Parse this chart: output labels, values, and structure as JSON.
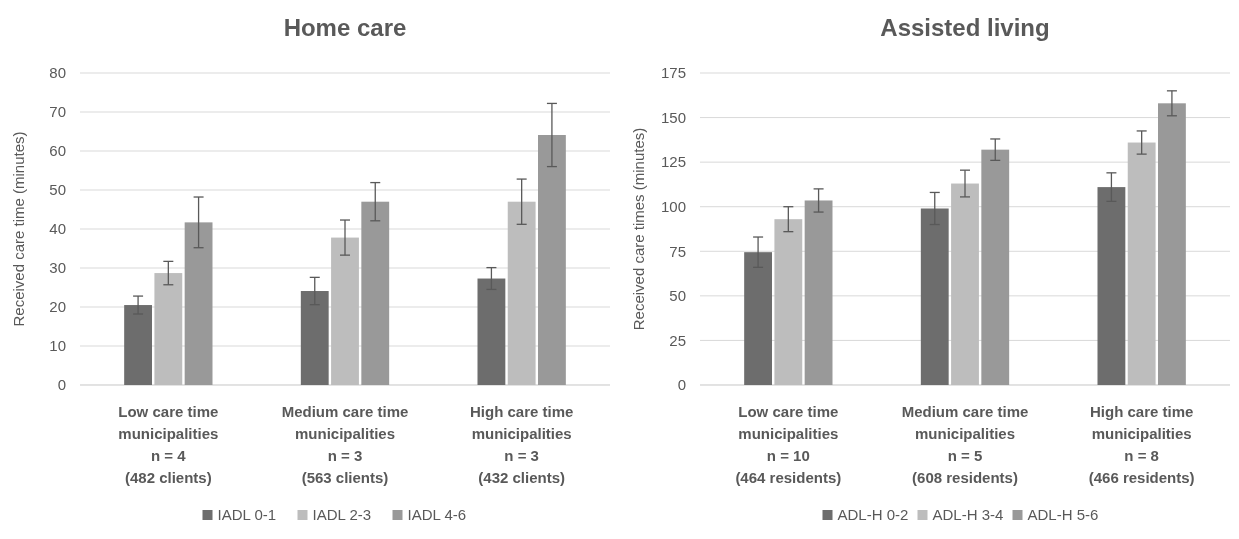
{
  "chart_data": [
    {
      "type": "bar",
      "title": "Home care",
      "ylabel": "Received care time (minutes)",
      "categories": [
        "Low care time\nmunicipalities\nn = 4\n(482 clients)",
        "Medium care time\nmunicipalities\nn = 3\n(563 clients)",
        "High care time\nmunicipalities\nn = 3\n(432 clients)"
      ],
      "series": [
        {
          "name": "IADL 0-1",
          "color": "#6d6d6d",
          "values": [
            20.5,
            24.1,
            27.3
          ],
          "errors": [
            2.3,
            3.5,
            2.8
          ]
        },
        {
          "name": "IADL 2-3",
          "color": "#bdbdbd",
          "values": [
            28.7,
            37.8,
            47
          ],
          "errors": [
            3,
            4.5,
            5.8
          ]
        },
        {
          "name": "IADL 4-6",
          "color": "#999999",
          "values": [
            41.7,
            47,
            64.1
          ],
          "errors": [
            6.5,
            4.9,
            8.1
          ]
        }
      ],
      "ylim": [
        0,
        80
      ],
      "yticks": [
        0,
        10,
        20,
        30,
        40,
        50,
        60,
        70,
        80
      ],
      "grid": "y",
      "legend": "bottom"
    },
    {
      "type": "bar",
      "title": "Assisted living",
      "ylabel": "Received care times (minutes)",
      "categories": [
        "Low care time\nmunicipalities\nn = 10\n(464 residents)",
        "Medium care time\nmunicipalities\nn = 5\n(608 residents)",
        "High care time\nmunicipalities\nn = 8\n(466 residents)"
      ],
      "series": [
        {
          "name": "ADL-H 0-2",
          "color": "#6d6d6d",
          "values": [
            74.5,
            99,
            111
          ],
          "errors": [
            8.5,
            9,
            8
          ]
        },
        {
          "name": "ADL-H 3-4",
          "color": "#bdbdbd",
          "values": [
            93,
            113,
            136
          ],
          "errors": [
            7,
            7.5,
            6.5
          ]
        },
        {
          "name": "ADL-H 5-6",
          "color": "#999999",
          "values": [
            103.5,
            132,
            158
          ],
          "errors": [
            6.5,
            6,
            7
          ]
        }
      ],
      "ylim": [
        0,
        175
      ],
      "yticks": [
        0,
        25,
        50,
        75,
        100,
        125,
        150,
        175
      ],
      "grid": "y",
      "legend": "bottom"
    }
  ]
}
